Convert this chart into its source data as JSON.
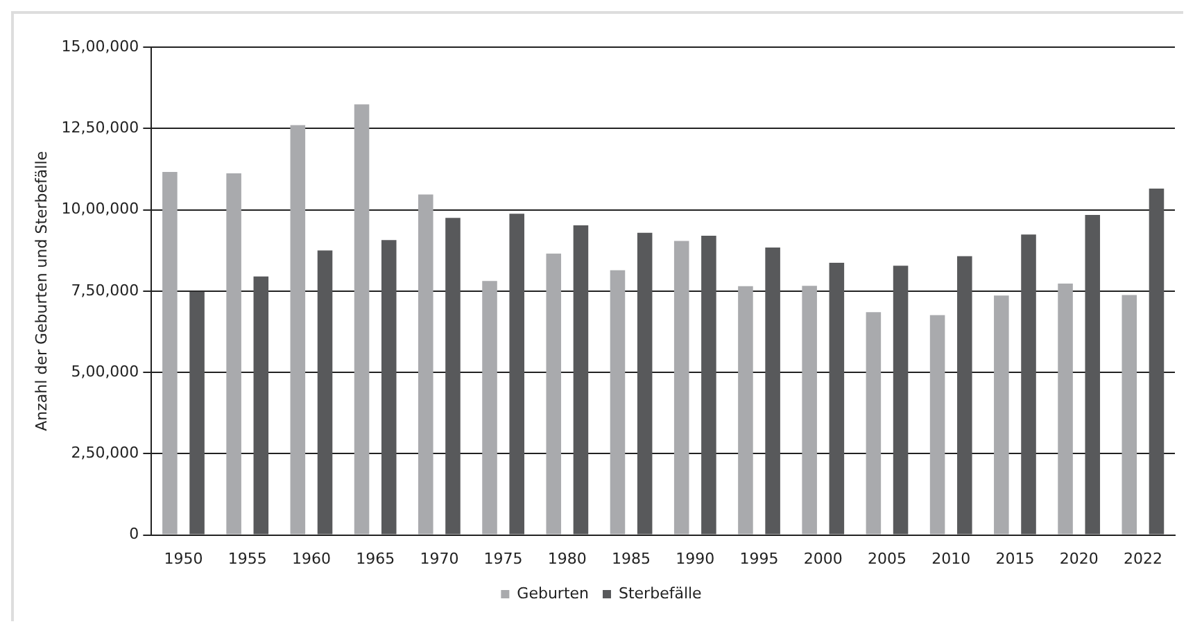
{
  "chart_data": {
    "type": "bar",
    "ylabel": "Anzahl der Geburten und Sterbefälle",
    "categories": [
      "1950",
      "1955",
      "1960",
      "1965",
      "1970",
      "1975",
      "1980",
      "1985",
      "1990",
      "1995",
      "2000",
      "2005",
      "2010",
      "2015",
      "2020",
      "2022"
    ],
    "series": [
      {
        "name": "Geburten",
        "color": "#a9aaad",
        "values": [
          1116000,
          1112000,
          1260000,
          1324000,
          1047000,
          781000,
          865000,
          814000,
          904000,
          765000,
          766000,
          685000,
          676000,
          736000,
          773000,
          738000
        ]
      },
      {
        "name": "Sterbefälle",
        "color": "#58595b",
        "values": [
          748000,
          795000,
          875000,
          907000,
          975000,
          988000,
          952000,
          929000,
          920000,
          884000,
          837000,
          828000,
          857000,
          924000,
          984000,
          1065000
        ]
      }
    ],
    "ylim": [
      0,
      1500000
    ],
    "yticks": [
      0,
      {
        "value": 250000,
        "label": "2,50,000"
      },
      {
        "value": 500000,
        "label": "5,00,000"
      },
      {
        "value": 750000,
        "label": "7,50,000"
      },
      {
        "value": 1000000,
        "label": "10,00,000"
      },
      {
        "value": 1250000,
        "label": "12,50,000"
      },
      {
        "value": 1500000,
        "label": "15,00,000"
      }
    ],
    "grid": "y",
    "legend": "bottom"
  }
}
